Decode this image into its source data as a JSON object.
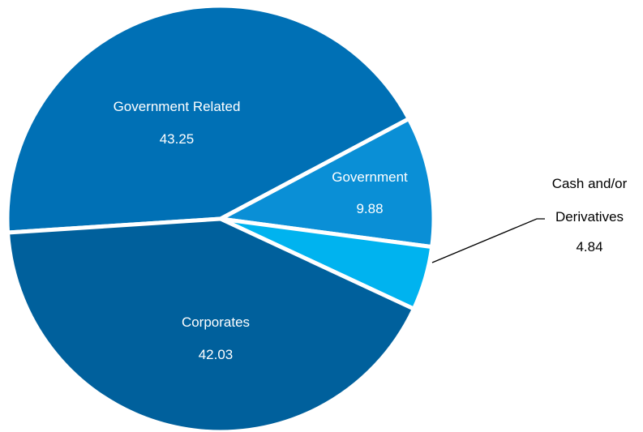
{
  "chart_data": {
    "type": "pie",
    "title": "",
    "slices": [
      {
        "key": "government-related",
        "label": "Government Related",
        "value": 43.25,
        "color": "#0070b5"
      },
      {
        "key": "government",
        "label": "Government",
        "value": 9.88,
        "color": "#0a8fd6"
      },
      {
        "key": "cash-derivatives",
        "label_lines": [
          "Cash and/or",
          "Derivatives"
        ],
        "value": 4.84,
        "color": "#00b3ef",
        "label_position": "outside-right"
      },
      {
        "key": "corporates",
        "label": "Corporates",
        "value": 42.03,
        "color": "#00609c"
      }
    ],
    "value_labels": [
      "43.25",
      "9.88",
      "4.84",
      "42.03"
    ],
    "legend": "none",
    "slice_separator_color": "#ffffff"
  }
}
